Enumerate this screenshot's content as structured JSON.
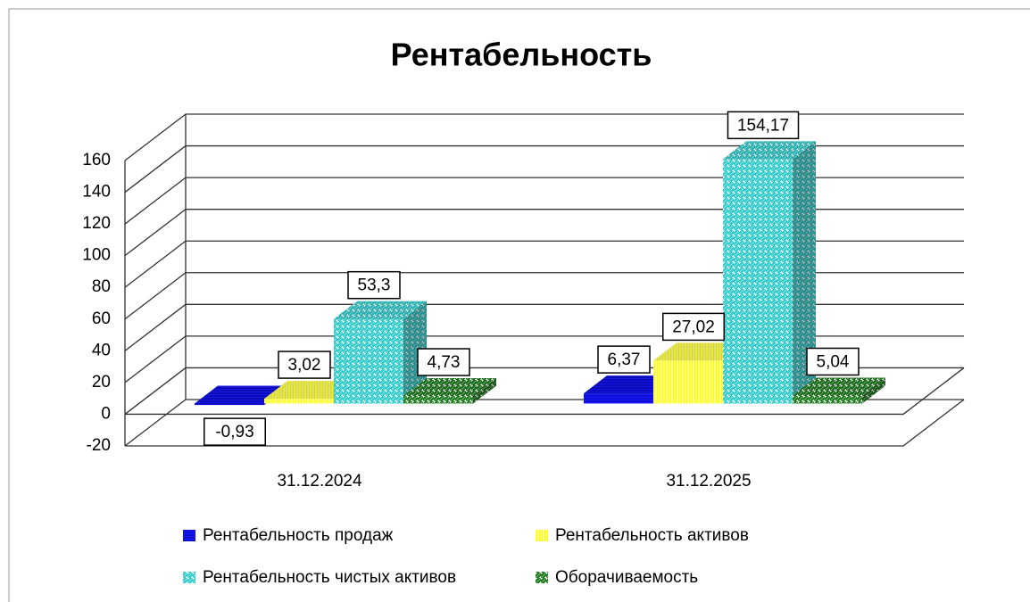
{
  "chart_data": {
    "type": "bar3d",
    "title": "Рентабельность",
    "categories": [
      "31.12.2024",
      "31.12.2025"
    ],
    "series": [
      {
        "name": "Рентабельность продаж",
        "color": "#1a1aff",
        "values": [
          -0.93,
          6.37
        ],
        "value_labels": [
          "-0,93",
          "6,37"
        ]
      },
      {
        "name": "Рентабельность активов",
        "color": "#ffff00",
        "values": [
          3.02,
          27.02
        ],
        "value_labels": [
          "3,02",
          "27,02"
        ]
      },
      {
        "name": "Рентабельность чистых активов",
        "color": "#33cccc",
        "values": [
          53.3,
          154.17
        ],
        "value_labels": [
          "53,3",
          "154,17"
        ]
      },
      {
        "name": "Оборачиваемость",
        "color": "#1e7a1e",
        "values": [
          4.73,
          5.04
        ],
        "value_labels": [
          "4,73",
          "5,04"
        ]
      }
    ],
    "ylim": [
      -20,
      160
    ],
    "yticks": [
      -20,
      0,
      20,
      40,
      60,
      80,
      100,
      120,
      140,
      160
    ],
    "grid": true
  }
}
